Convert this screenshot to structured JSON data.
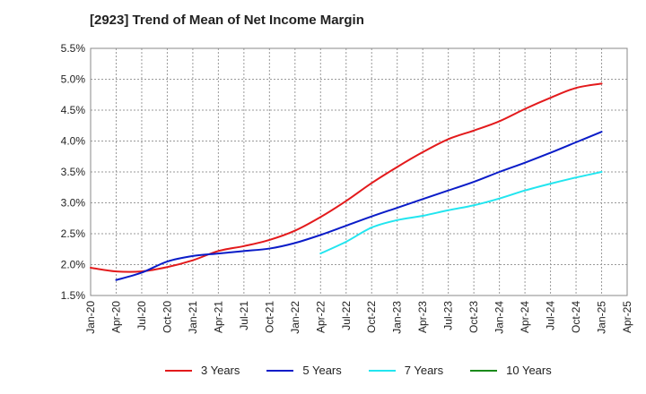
{
  "chart_data": {
    "type": "line",
    "title": "[2923]  Trend of Mean of Net Income Margin",
    "xlabel": "",
    "ylabel": "",
    "x_ticks": [
      "Jan-20",
      "Apr-20",
      "Jul-20",
      "Oct-20",
      "Jan-21",
      "Apr-21",
      "Jul-21",
      "Oct-21",
      "Jan-22",
      "Apr-22",
      "Jul-22",
      "Oct-22",
      "Jan-23",
      "Apr-23",
      "Jul-23",
      "Oct-23",
      "Jan-24",
      "Apr-24",
      "Jul-24",
      "Oct-24",
      "Jan-25",
      "Apr-25"
    ],
    "y_ticks": [
      "1.5%",
      "2.0%",
      "2.5%",
      "3.0%",
      "3.5%",
      "4.0%",
      "4.5%",
      "5.0%",
      "5.5%"
    ],
    "ylim": [
      1.5,
      5.5
    ],
    "grid": true,
    "legend_position": "bottom",
    "series": [
      {
        "name": "3 Years",
        "color": "#e31a1c",
        "points": [
          [
            "Jan-20",
            1.95
          ],
          [
            "Apr-20",
            1.89
          ],
          [
            "Jul-20",
            1.89
          ],
          [
            "Oct-20",
            1.96
          ],
          [
            "Jan-21",
            2.07
          ],
          [
            "Apr-21",
            2.22
          ],
          [
            "Jul-21",
            2.3
          ],
          [
            "Oct-21",
            2.4
          ],
          [
            "Jan-22",
            2.55
          ],
          [
            "Apr-22",
            2.77
          ],
          [
            "Jul-22",
            3.03
          ],
          [
            "Oct-22",
            3.32
          ],
          [
            "Jan-23",
            3.58
          ],
          [
            "Apr-23",
            3.82
          ],
          [
            "Jul-23",
            4.03
          ],
          [
            "Oct-23",
            4.17
          ],
          [
            "Jan-24",
            4.32
          ],
          [
            "Apr-24",
            4.52
          ],
          [
            "Jul-24",
            4.7
          ],
          [
            "Oct-24",
            4.86
          ],
          [
            "Jan-25",
            4.93
          ]
        ]
      },
      {
        "name": "5 Years",
        "color": "#0a1cc8",
        "points": [
          [
            "Apr-20",
            1.75
          ],
          [
            "Jul-20",
            1.87
          ],
          [
            "Oct-20",
            2.05
          ],
          [
            "Jan-21",
            2.14
          ],
          [
            "Apr-21",
            2.18
          ],
          [
            "Jul-21",
            2.22
          ],
          [
            "Oct-21",
            2.26
          ],
          [
            "Jan-22",
            2.35
          ],
          [
            "Apr-22",
            2.48
          ],
          [
            "Jul-22",
            2.63
          ],
          [
            "Oct-22",
            2.78
          ],
          [
            "Jan-23",
            2.92
          ],
          [
            "Apr-23",
            3.06
          ],
          [
            "Jul-23",
            3.2
          ],
          [
            "Oct-23",
            3.34
          ],
          [
            "Jan-24",
            3.5
          ],
          [
            "Apr-24",
            3.65
          ],
          [
            "Jul-24",
            3.81
          ],
          [
            "Oct-24",
            3.98
          ],
          [
            "Jan-25",
            4.15
          ]
        ]
      },
      {
        "name": "7 Years",
        "color": "#22e5ef",
        "points": [
          [
            "Apr-22",
            2.18
          ],
          [
            "Jul-22",
            2.37
          ],
          [
            "Oct-22",
            2.6
          ],
          [
            "Jan-23",
            2.72
          ],
          [
            "Apr-23",
            2.79
          ],
          [
            "Jul-23",
            2.88
          ],
          [
            "Oct-23",
            2.96
          ],
          [
            "Jan-24",
            3.07
          ],
          [
            "Apr-24",
            3.2
          ],
          [
            "Jul-24",
            3.31
          ],
          [
            "Oct-24",
            3.41
          ],
          [
            "Jan-25",
            3.5
          ]
        ]
      },
      {
        "name": "10 Years",
        "color": "#1a8a1a",
        "points": []
      }
    ]
  }
}
